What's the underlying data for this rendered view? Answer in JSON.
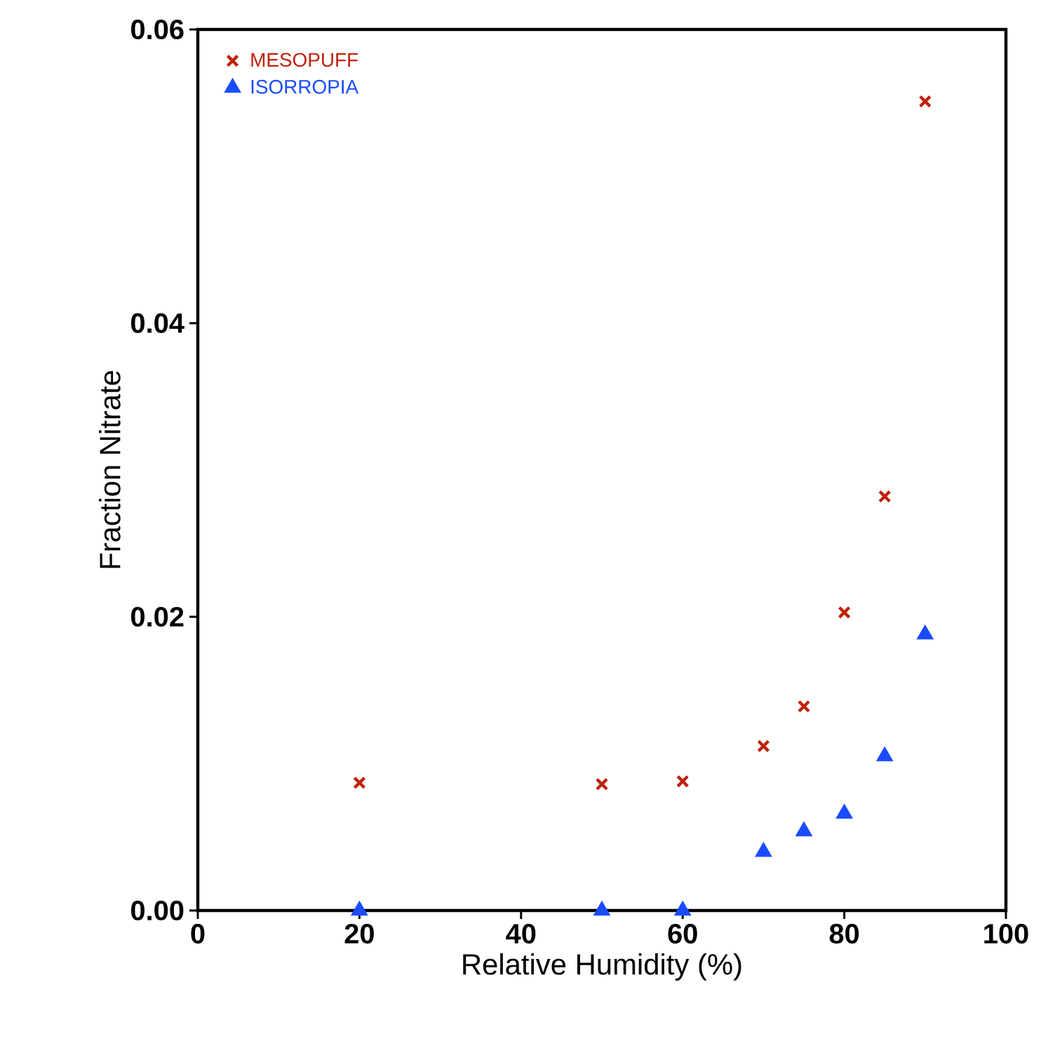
{
  "chart_data": {
    "type": "scatter",
    "xlabel": "Relative Humidity (%)",
    "ylabel": "Fraction Nitrate",
    "x": [
      20,
      50,
      60,
      70,
      75,
      80,
      85,
      90
    ],
    "series": [
      {
        "name": "MESOPUFF",
        "color": "#c0220c",
        "marker": "cross",
        "values": [
          0.0087,
          0.0086,
          0.0088,
          0.0112,
          0.0139,
          0.0203,
          0.0282,
          0.0551
        ]
      },
      {
        "name": "ISORROPIA",
        "color": "#1a4cff",
        "marker": "triangle",
        "values": [
          0.0,
          0.0,
          0.0,
          0.004,
          0.0054,
          0.0066,
          0.0105,
          0.0188
        ]
      }
    ],
    "xlim": [
      0,
      100
    ],
    "xticks": [
      0,
      20,
      40,
      60,
      80,
      100
    ],
    "ylim": [
      0,
      0.06
    ],
    "yticks": [
      {
        "value": 0,
        "label": "0.00"
      },
      {
        "value": 0.02,
        "label": "0.02"
      },
      {
        "value": 0.04,
        "label": "0.04"
      },
      {
        "value": 0.06,
        "label": "0.06"
      }
    ],
    "legend": "top left",
    "grid": false
  }
}
